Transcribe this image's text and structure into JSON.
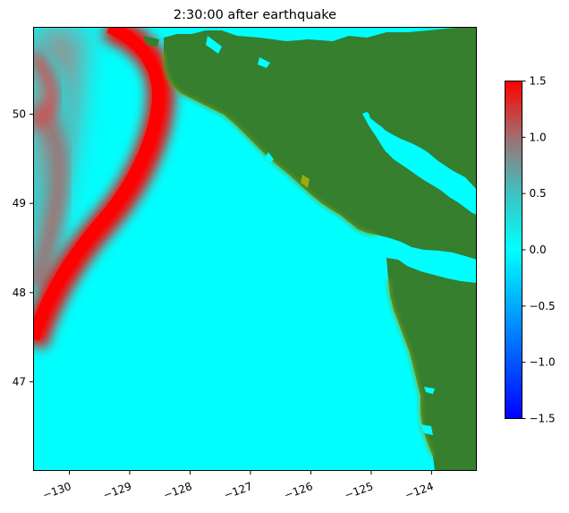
{
  "chart_data": {
    "type": "heatmap",
    "title": "2:30:00 after earthquake",
    "xlabel": "",
    "ylabel": "",
    "xlim": [
      -130.6,
      -123.25
    ],
    "ylim": [
      46.0,
      50.98
    ],
    "x_ticks": [
      {
        "value": -130,
        "label": "−130"
      },
      {
        "value": -129,
        "label": "−129"
      },
      {
        "value": -128,
        "label": "−128"
      },
      {
        "value": -127,
        "label": "−127"
      },
      {
        "value": -126,
        "label": "−126"
      },
      {
        "value": -125,
        "label": "−125"
      },
      {
        "value": -124,
        "label": "−124"
      }
    ],
    "y_ticks": [
      {
        "value": 47,
        "label": "47"
      },
      {
        "value": 48,
        "label": "48"
      },
      {
        "value": 49,
        "label": "49"
      },
      {
        "value": 50,
        "label": "50"
      }
    ],
    "colorbar": {
      "range": [
        -1.5,
        1.5
      ],
      "ticks": [
        {
          "value": 1.5,
          "label": "1.5"
        },
        {
          "value": 1.0,
          "label": "1.0"
        },
        {
          "value": 0.5,
          "label": "0.5"
        },
        {
          "value": 0.0,
          "label": "0.0"
        },
        {
          "value": -0.5,
          "label": "−0.5"
        },
        {
          "value": -1.0,
          "label": "−1.0"
        },
        {
          "value": -1.5,
          "label": "−1.5"
        }
      ],
      "colors": [
        "#0000ff",
        "#00ffff",
        "#ff0000"
      ]
    },
    "land_color": "#357f2f",
    "water_color": "#00ffff",
    "wave_color": "#ff0000",
    "grid": false
  }
}
